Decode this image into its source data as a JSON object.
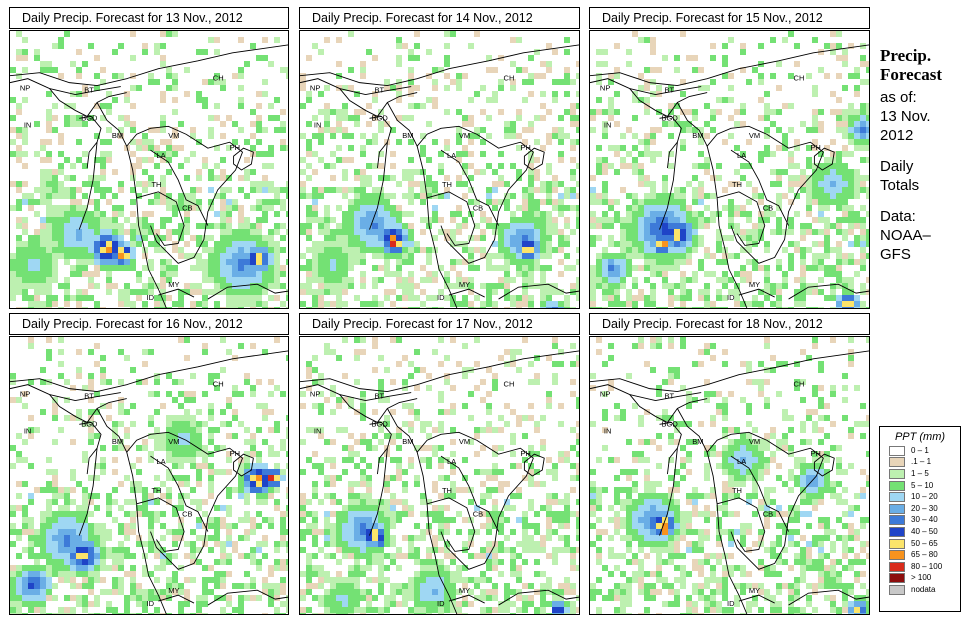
{
  "panels": [
    {
      "title": "Daily Precip. Forecast for  13 Nov., 2012",
      "seed": 11
    },
    {
      "title": "Daily Precip. Forecast for  14 Nov., 2012",
      "seed": 23
    },
    {
      "title": "Daily Precip. Forecast for  15 Nov., 2012",
      "seed": 37
    },
    {
      "title": "Daily Precip. Forecast for  16 Nov., 2012",
      "seed": 41
    },
    {
      "title": "Daily Precip. Forecast for  17 Nov., 2012",
      "seed": 59
    },
    {
      "title": "Daily Precip. Forecast for  18 Nov., 2012",
      "seed": 67
    }
  ],
  "country_labels": [
    "CH",
    "NP",
    "BT",
    "IN",
    "BGD",
    "BM",
    "VM",
    "LA",
    "TH",
    "CB",
    "MY",
    "ID",
    "PH"
  ],
  "sidebar": {
    "heading1": "Precip.",
    "heading2": "Forecast",
    "line1": "as of:",
    "line2": "13 Nov.",
    "line3": "2012",
    "line4": "Daily",
    "line5": "Totals",
    "line6": "Data:",
    "line7": "NOAA–",
    "line8": "GFS"
  },
  "legend": {
    "title": "PPT (mm)",
    "entries": [
      {
        "label": "0 – 1",
        "color": "#ffffff"
      },
      {
        "label": ".1 – 1",
        "color": "#e8d5b9"
      },
      {
        "label": "1 – 5",
        "color": "#bdf0b0"
      },
      {
        "label": "5 – 10",
        "color": "#74e174"
      },
      {
        "label": "10 – 20",
        "color": "#9fd7f3"
      },
      {
        "label": "20 – 30",
        "color": "#6aaee6"
      },
      {
        "label": "30 – 40",
        "color": "#3d7ad8"
      },
      {
        "label": "40 – 50",
        "color": "#1f44c7"
      },
      {
        "label": "50 – 65",
        "color": "#fbe46a"
      },
      {
        "label": "65 – 80",
        "color": "#f7931e"
      },
      {
        "label": "80 – 100",
        "color": "#d92b1b"
      },
      {
        "label": "> 100",
        "color": "#8c0d0d"
      },
      {
        "label": "nodata",
        "color": "#c8c8c8"
      }
    ]
  }
}
